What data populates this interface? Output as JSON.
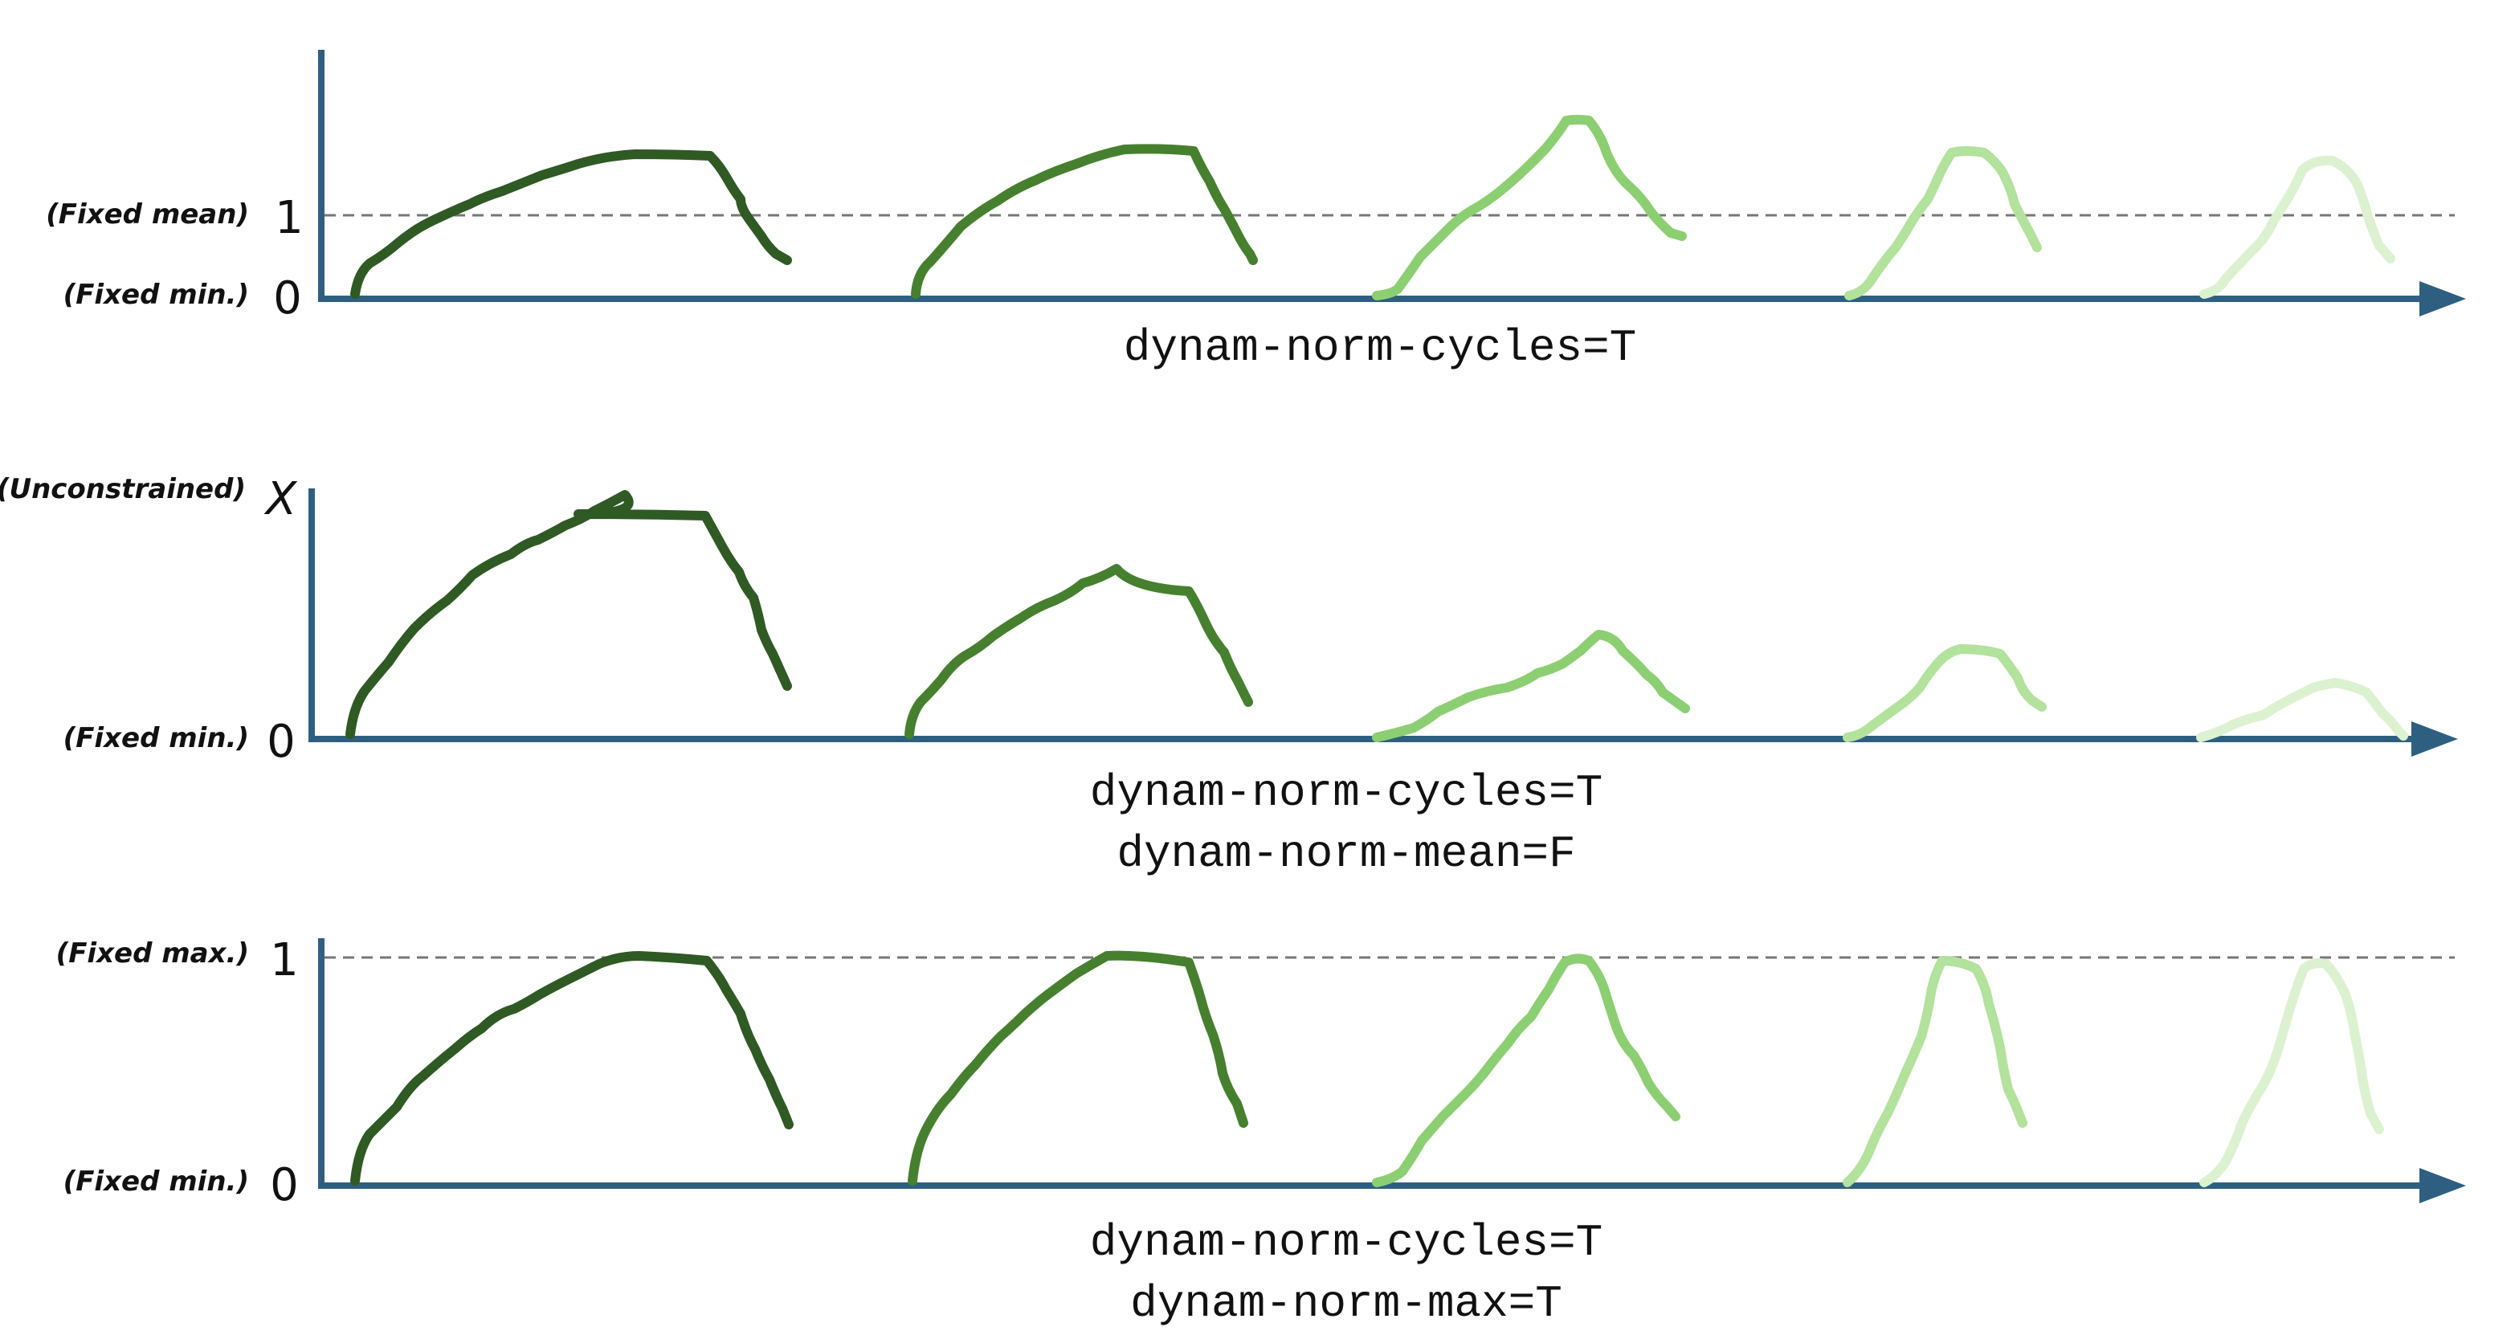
{
  "colors": {
    "axis": "#2f5f80",
    "cycles": [
      "#2f5a24",
      "#46802f",
      "#8ccf72",
      "#b2e29c",
      "#dcf1d0"
    ]
  },
  "panels": [
    {
      "id": "cycles",
      "labels": {
        "top": {
          "note": "(Fixed mean)",
          "tick": "1"
        },
        "bottom": {
          "note": "(Fixed min.)",
          "tick": "0"
        }
      },
      "caption": [
        "dynam-norm-cycles=T"
      ]
    },
    {
      "id": "mean-f",
      "labels": {
        "top": {
          "note": "(Unconstrained)",
          "tick": "X"
        },
        "bottom": {
          "note": "(Fixed min.)",
          "tick": "0"
        }
      },
      "caption": [
        "dynam-norm-cycles=T",
        "dynam-norm-mean=F"
      ]
    },
    {
      "id": "max-t",
      "labels": {
        "top": {
          "note": "(Fixed max.)",
          "tick": "1"
        },
        "bottom": {
          "note": "(Fixed min.)",
          "tick": "0"
        }
      },
      "caption": [
        "dynam-norm-cycles=T",
        "dynam-norm-max=T"
      ]
    }
  ]
}
